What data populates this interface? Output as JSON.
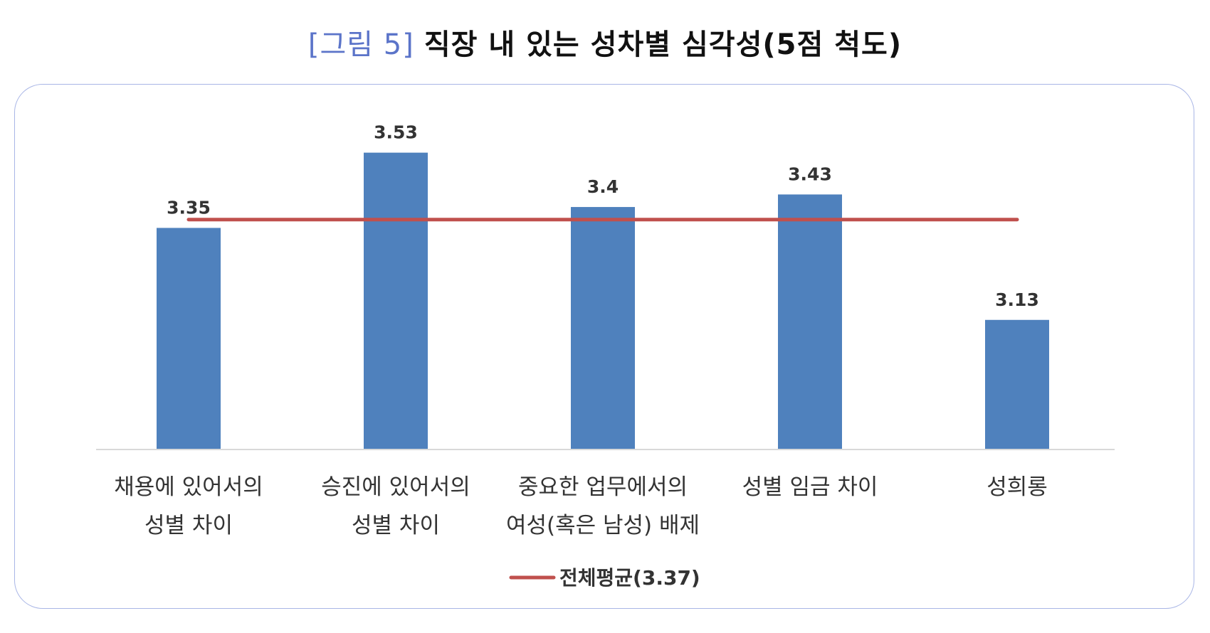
{
  "title": {
    "figure_label": "[그림 5]",
    "text": "직장 내 있는 성차별 심각성(5점 척도)"
  },
  "colors": {
    "bar": "#4f81bd",
    "average_line": "#c0504d",
    "figure_label": "#5b74c9",
    "frame_border": "#a9b6e6"
  },
  "chart_data": {
    "type": "bar",
    "categories": [
      [
        "채용에 있어서의",
        "성별 차이"
      ],
      [
        "승진에 있어서의",
        "성별 차이"
      ],
      [
        "중요한 업무에서의",
        "여성(혹은 남성) 배제"
      ],
      [
        "성별 임금 차이"
      ],
      [
        "성희롱"
      ]
    ],
    "values": [
      3.35,
      3.53,
      3.4,
      3.43,
      3.13
    ],
    "value_labels": [
      "3.35",
      "3.53",
      "3.4",
      "3.43",
      "3.13"
    ],
    "reference_line": {
      "name": "전체평균(3.37)",
      "value": 3.37
    },
    "legend": {
      "label": "전체평균(3.37)",
      "position": "bottom"
    },
    "ylim": [
      2.82,
      3.56
    ],
    "grid": false,
    "xlabel": "",
    "ylabel": ""
  }
}
